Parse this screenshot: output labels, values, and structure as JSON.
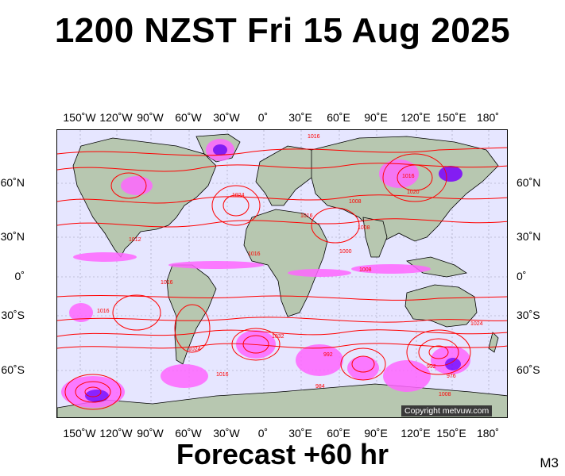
{
  "title": "1200 NZST Fri 15 Aug 2025",
  "footer": "Forecast +60 hr",
  "code": "M3",
  "copyright": "Copyright metvuw.com",
  "colors": {
    "ocean": "#e6e6ff",
    "land": "#b7c7b0",
    "isobar": "#ff0000",
    "precip_light": "#ff66ff",
    "precip_heavy": "#7a00ff",
    "coast": "#000000"
  },
  "longitude_ticks": [
    "150˚W",
    "120˚W",
    "90˚W",
    "60˚W",
    "30˚W",
    "0˚",
    "30˚E",
    "60˚E",
    "90˚E",
    "120˚E",
    "150˚E",
    "180˚"
  ],
  "latitude_ticks": [
    "60˚N",
    "30˚N",
    "0˚",
    "30˚S",
    "60˚S"
  ],
  "isobar_labels": [
    "1016",
    "1024",
    "1016",
    "1016",
    "1012",
    "1016",
    "1008",
    "1000",
    "1016",
    "1008",
    "1020",
    "1008",
    "1016",
    "1032",
    "1024",
    "1024",
    "992",
    "984",
    "976",
    "992",
    "1008",
    "1016"
  ]
}
